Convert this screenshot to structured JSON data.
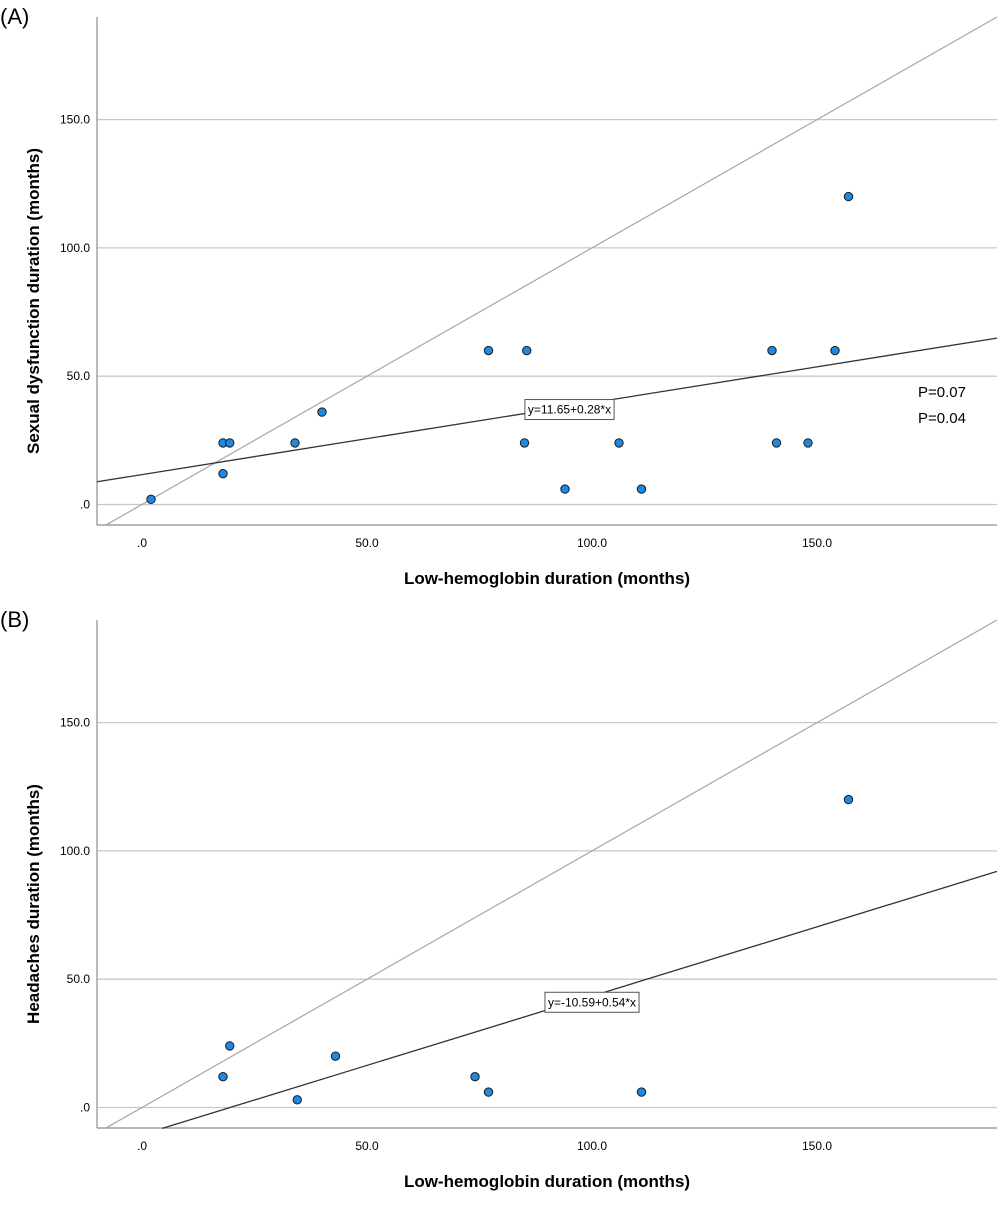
{
  "chart_data": [
    {
      "type": "scatter",
      "panel_label": "(A)",
      "xlabel": "Low-hemoglobin duration (months)",
      "ylabel": "Sexual dysfunction duration (months)",
      "xlim": [
        -10,
        190
      ],
      "ylim": [
        -8,
        190
      ],
      "xticks": [
        0,
        50,
        100,
        150
      ],
      "xtick_labels": [
        ".0",
        "50.0",
        "100.0",
        "150.0"
      ],
      "yticks": [
        0,
        50,
        100,
        150
      ],
      "ytick_labels": [
        ".0",
        "50.0",
        "100.0",
        "150.0"
      ],
      "grid": "horizontal",
      "points": [
        {
          "x": 2,
          "y": 2
        },
        {
          "x": 18,
          "y": 24
        },
        {
          "x": 18,
          "y": 12
        },
        {
          "x": 19.5,
          "y": 24
        },
        {
          "x": 34,
          "y": 24
        },
        {
          "x": 40,
          "y": 36
        },
        {
          "x": 77,
          "y": 60
        },
        {
          "x": 85,
          "y": 24
        },
        {
          "x": 85.5,
          "y": 60
        },
        {
          "x": 94,
          "y": 6
        },
        {
          "x": 106,
          "y": 24
        },
        {
          "x": 111,
          "y": 6
        },
        {
          "x": 140,
          "y": 60
        },
        {
          "x": 141,
          "y": 24
        },
        {
          "x": 148,
          "y": 24
        },
        {
          "x": 154,
          "y": 60
        },
        {
          "x": 157,
          "y": 120
        }
      ],
      "fit_line": {
        "intercept": 11.65,
        "slope": 0.28,
        "label": "y=11.65+0.28*x",
        "label_x": 95,
        "label_y": 37
      },
      "reference_line": {
        "intercept": 0,
        "slope": 1
      },
      "annotations": [
        "P=0.07",
        "P=0.04"
      ]
    },
    {
      "type": "scatter",
      "panel_label": "(B)",
      "xlabel": "Low-hemoglobin duration (months)",
      "ylabel": "Headaches duration (months)",
      "xlim": [
        -10,
        190
      ],
      "ylim": [
        -8,
        190
      ],
      "xticks": [
        0,
        50,
        100,
        150
      ],
      "xtick_labels": [
        ".0",
        "50.0",
        "100.0",
        "150.0"
      ],
      "yticks": [
        0,
        50,
        100,
        150
      ],
      "ytick_labels": [
        ".0",
        "50.0",
        "100.0",
        "150.0"
      ],
      "grid": "horizontal",
      "points": [
        {
          "x": 18,
          "y": 12
        },
        {
          "x": 19.5,
          "y": 24
        },
        {
          "x": 34.5,
          "y": 3
        },
        {
          "x": 43,
          "y": 20
        },
        {
          "x": 74,
          "y": 12
        },
        {
          "x": 77,
          "y": 6
        },
        {
          "x": 111,
          "y": 6
        },
        {
          "x": 157,
          "y": 120
        }
      ],
      "fit_line": {
        "intercept": -10.59,
        "slope": 0.54,
        "label": "y=-10.59+0.54*x",
        "label_x": 100,
        "label_y": 41
      },
      "reference_line": {
        "intercept": 0,
        "slope": 1
      },
      "annotations": []
    }
  ],
  "colors": {
    "point_fill": "#1e88e5",
    "point_stroke": "#1a1a1a",
    "grid": "#c8c8c8",
    "fit_line": "#333333",
    "reference_line": "#a6a6a6",
    "axis": "#8c8c8c"
  }
}
